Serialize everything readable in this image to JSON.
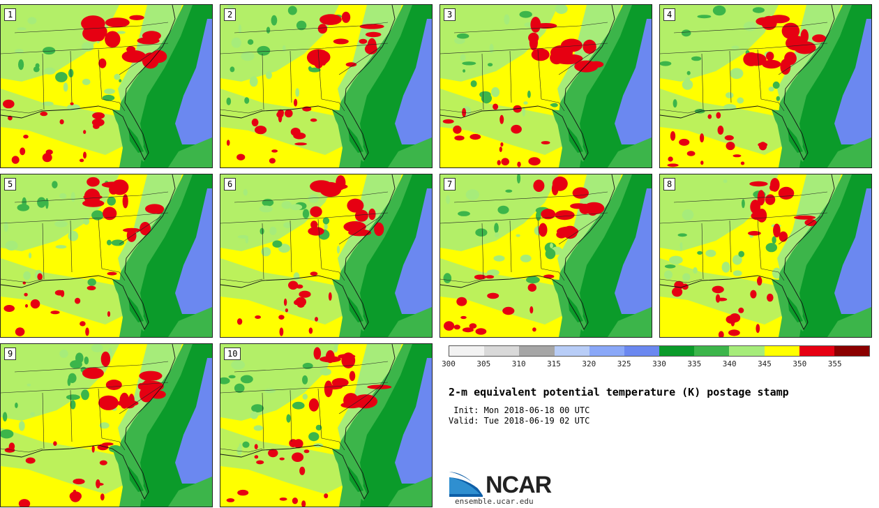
{
  "panels": [
    {
      "label": "1"
    },
    {
      "label": "2"
    },
    {
      "label": "3"
    },
    {
      "label": "4"
    },
    {
      "label": "5"
    },
    {
      "label": "6"
    },
    {
      "label": "7"
    },
    {
      "label": "8"
    },
    {
      "label": "9"
    },
    {
      "label": "10"
    }
  ],
  "colorbar": {
    "ticks": [
      "300",
      "305",
      "310",
      "315",
      "320",
      "325",
      "330",
      "335",
      "340",
      "345",
      "350",
      "355"
    ],
    "colors": [
      "#f2f2f2",
      "#d9d9d9",
      "#a6a6a6",
      "#b8cdf7",
      "#8aa8f8",
      "#6b88f0",
      "#0b9b2a",
      "#3cb54a",
      "#a6ec7a",
      "#ffff00",
      "#e60012",
      "#8b0000"
    ]
  },
  "title": "2-m equivalent potential temperature (K) postage stamp",
  "init": " Init: Mon 2018-06-18 00 UTC",
  "valid": "Valid: Tue 2018-06-19 02 UTC",
  "logo": {
    "text": "NCAR",
    "url": "ensemble.ucar.edu"
  }
}
